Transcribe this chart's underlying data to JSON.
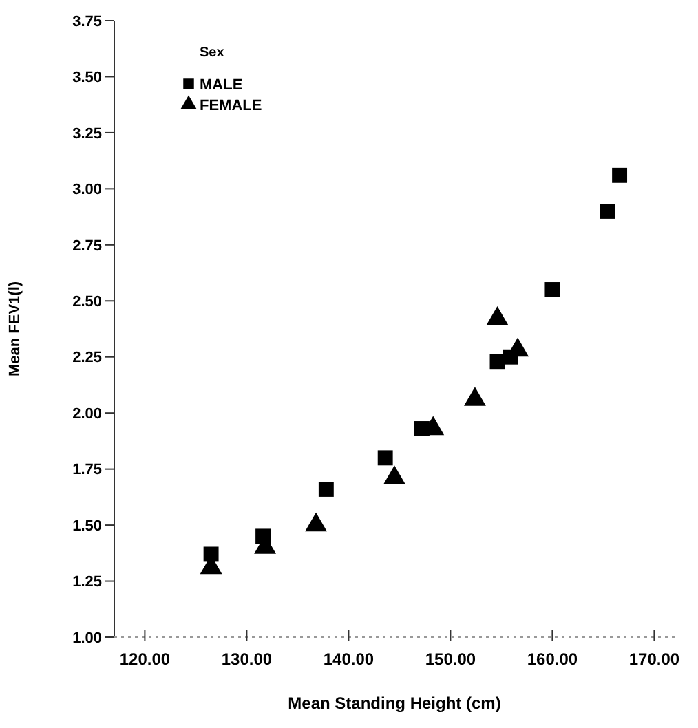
{
  "chart_data": {
    "type": "scatter",
    "xlabel": "Mean Standing Height (cm)",
    "ylabel": "Mean FEV1(l)",
    "legend_title": "Sex",
    "legend": "top left",
    "grid": false,
    "xlim": [
      117,
      172
    ],
    "ylim": [
      1.0,
      3.75
    ],
    "xticks": [
      {
        "value": 120,
        "label": "120.00"
      },
      {
        "value": 130,
        "label": "130.00"
      },
      {
        "value": 140,
        "label": "140.00"
      },
      {
        "value": 150,
        "label": "150.00"
      },
      {
        "value": 160,
        "label": "160.00"
      },
      {
        "value": 170,
        "label": "170.00"
      }
    ],
    "yticks": [
      {
        "value": 1,
        "label": "1.00"
      },
      {
        "value": 1.25,
        "label": "1.25"
      },
      {
        "value": 1.5,
        "label": "1.50"
      },
      {
        "value": 1.75,
        "label": "1.75"
      },
      {
        "value": 2,
        "label": "2.00"
      },
      {
        "value": 2.25,
        "label": "2.25"
      },
      {
        "value": 2.5,
        "label": "2.50"
      },
      {
        "value": 2.75,
        "label": "2.75"
      },
      {
        "value": 3,
        "label": "3.00"
      },
      {
        "value": 3.25,
        "label": "3.25"
      },
      {
        "value": 3.5,
        "label": "3.50"
      },
      {
        "value": 3.75,
        "label": "3.75"
      }
    ],
    "series": [
      {
        "name": "MALE",
        "color": "#000000",
        "marker": "square",
        "x": [
          126.5,
          131.6,
          137.8,
          143.6,
          147.2,
          154.6,
          155.9,
          160.0,
          165.4,
          166.6
        ],
        "values": [
          1.37,
          1.45,
          1.66,
          1.8,
          1.93,
          2.23,
          2.25,
          2.55,
          2.9,
          3.06
        ]
      },
      {
        "name": "FEMALE",
        "color": "#000000",
        "marker": "triangle",
        "x": [
          126.5,
          131.8,
          136.8,
          144.5,
          148.3,
          152.4,
          154.6,
          156.6
        ],
        "values": [
          1.31,
          1.4,
          1.5,
          1.71,
          1.93,
          2.06,
          2.42,
          2.28
        ]
      }
    ]
  }
}
